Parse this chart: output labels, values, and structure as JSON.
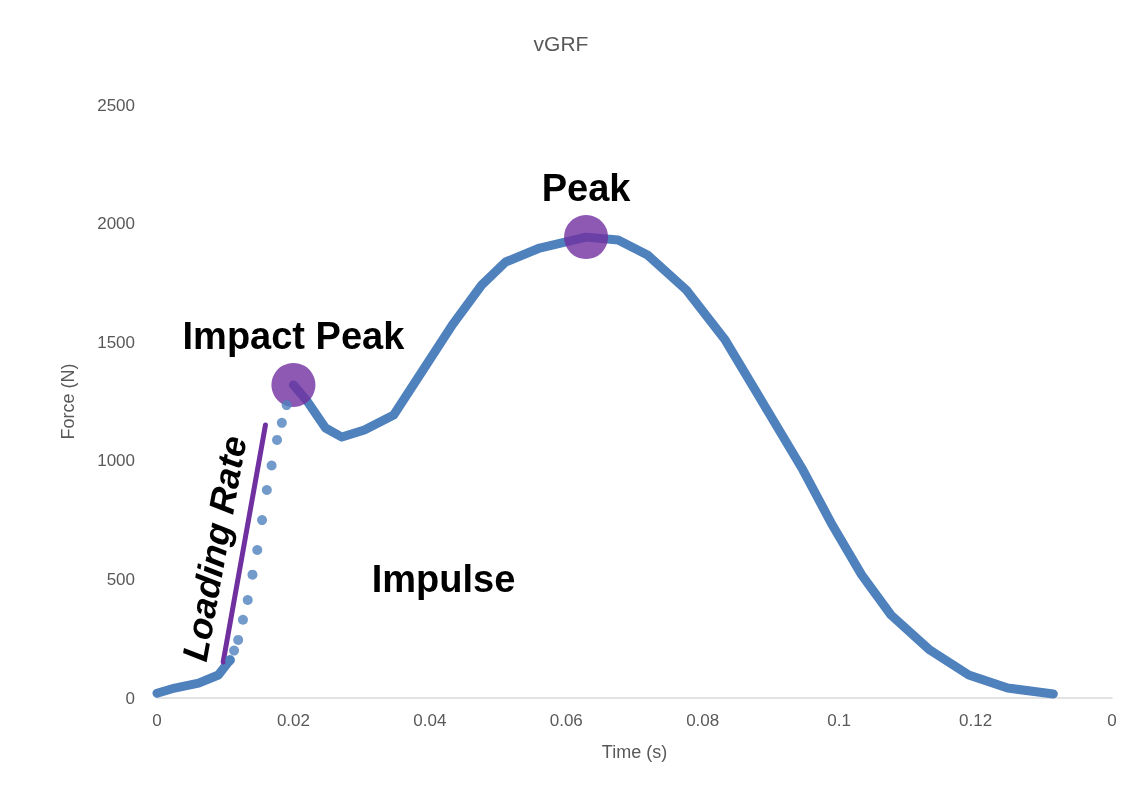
{
  "chart_data": {
    "type": "line",
    "title": "vGRF",
    "xlabel": "Time (s)",
    "ylabel": "Force (N)",
    "xlim": [
      0,
      0.14
    ],
    "xticks": [
      0,
      0.02,
      0.04,
      0.06,
      0.08,
      0.1,
      0.12,
      {
        "value": 0.14,
        "label": "0"
      }
    ],
    "ylim": [
      0,
      2500
    ],
    "yticks": [
      0,
      500,
      1000,
      1500,
      2000,
      2500
    ],
    "grid": false,
    "legend": false,
    "line_style": "solid",
    "marker": "none",
    "series": [
      {
        "color": "#4f81bd",
        "x": [
          0,
          0.0026,
          0.0061,
          0.009,
          0.0107,
          0.015,
          0.02,
          0.0219,
          0.0247,
          0.0271,
          0.0304,
          0.0347,
          0.039,
          0.0433,
          0.0476,
          0.0511,
          0.0561,
          0.0629,
          0.0676,
          0.0719,
          0.0776,
          0.0833,
          0.089,
          0.0947,
          0.099,
          0.1033,
          0.1076,
          0.1133,
          0.119,
          0.1247,
          0.1314
        ],
        "values": [
          20,
          42,
          63,
          97,
          160,
          null,
          1320,
          1256,
          1138,
          1100,
          1130,
          1193,
          1383,
          1573,
          1741,
          1838,
          1897,
          1943,
          1931,
          1868,
          1720,
          1509,
          1235,
          961,
          729,
          519,
          350,
          202,
          97,
          42,
          17
        ]
      },
      {
        "type": "scatter",
        "marker": "circle",
        "color": "#4f81bd",
        "x": [
          0.0107,
          0.0113,
          0.0119,
          0.0126,
          0.0133,
          0.014,
          0.0147,
          0.0154,
          0.0161,
          0.0168,
          0.0176,
          0.0183,
          0.019
        ],
        "values": [
          160,
          200,
          245,
          330,
          413,
          520,
          624,
          750,
          877,
          980,
          1088,
          1160,
          1235
        ]
      },
      {
        "type": "scatter",
        "marker": "circle",
        "color": "#7030a0",
        "x": [
          0.02,
          0.0629
        ],
        "values": [
          1320,
          1943
        ]
      },
      {
        "name": "Loading Rate",
        "color": "#7030a0",
        "x": [
          0.0097,
          0.0159
        ],
        "values": [
          152,
          1151
        ]
      }
    ],
    "annotations": [
      {
        "text": "Impact Peak",
        "x": 0.02,
        "y": 1320
      },
      {
        "text": "Peak",
        "x": 0.0629,
        "y": 1943
      },
      "Impulse"
    ]
  }
}
